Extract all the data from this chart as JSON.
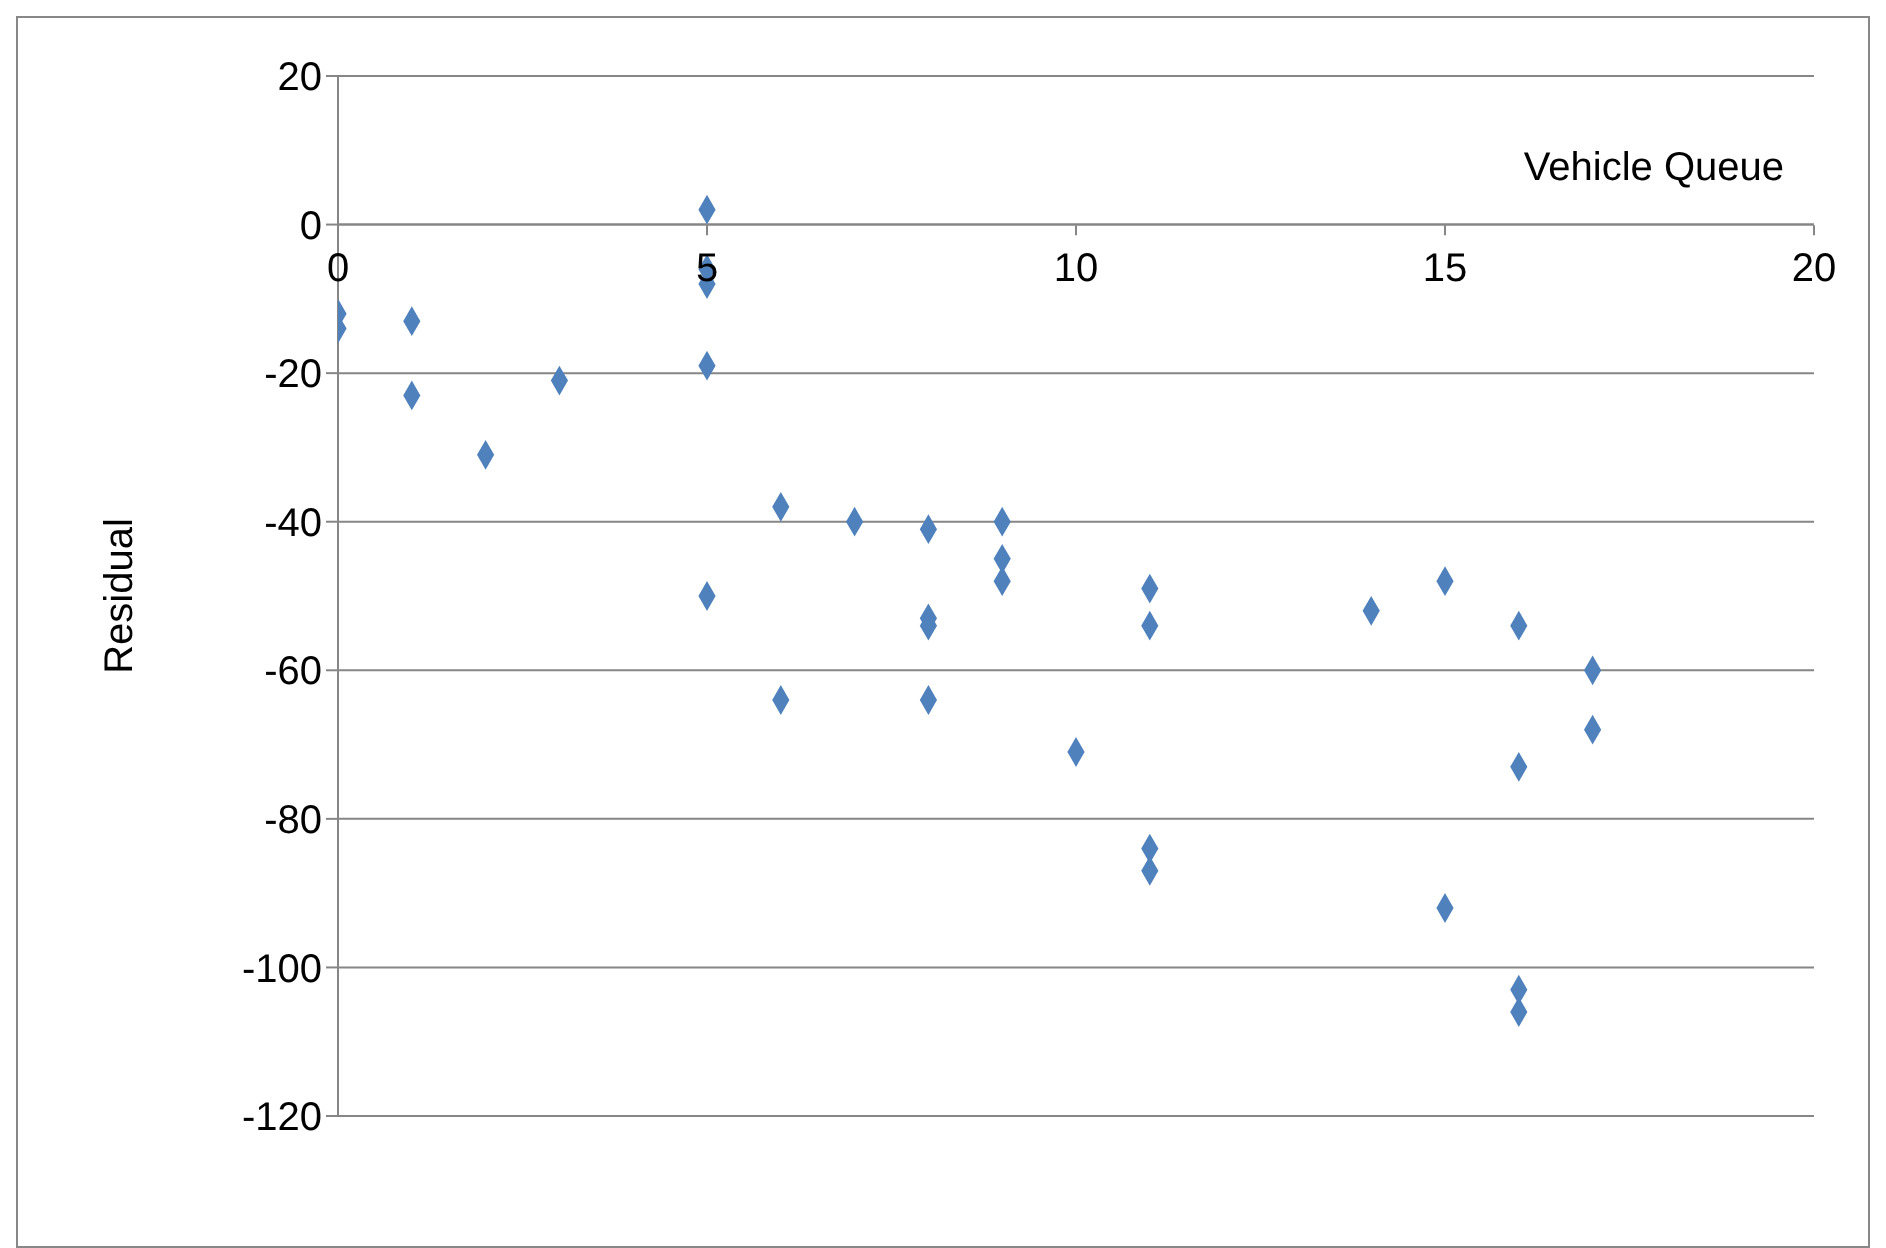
{
  "chart_data": {
    "type": "scatter",
    "xlabel": "Vehicle Queue",
    "ylabel": "Residual",
    "x": [
      0,
      0,
      1,
      1,
      2,
      3,
      5,
      5,
      5,
      5,
      5,
      6,
      6,
      7,
      8,
      8,
      8,
      8,
      9,
      9,
      9,
      10,
      11,
      11,
      11,
      11,
      14,
      15,
      15,
      16,
      16,
      16,
      16,
      17,
      17
    ],
    "series": [
      {
        "color": "#4f81bd",
        "values": [
          -12,
          -14,
          -13,
          -23,
          -31,
          -21,
          2,
          -6,
          -8,
          -19,
          -50,
          -38,
          -64,
          -40,
          -41,
          -53,
          -54,
          -64,
          -40,
          -45,
          -48,
          -71,
          -49,
          -54,
          -84,
          -87,
          -52,
          -48,
          -92,
          -54,
          -73,
          -103,
          -106,
          -60,
          -68
        ]
      }
    ],
    "xlim": [
      0,
      20
    ],
    "xticks": [
      0,
      5,
      10,
      15,
      20
    ],
    "ylim": [
      -120,
      20
    ],
    "yticks": [
      -120,
      -100,
      -80,
      -60,
      -40,
      -20,
      0,
      20
    ],
    "grid": "y",
    "marker": "diamond",
    "legend": false
  }
}
